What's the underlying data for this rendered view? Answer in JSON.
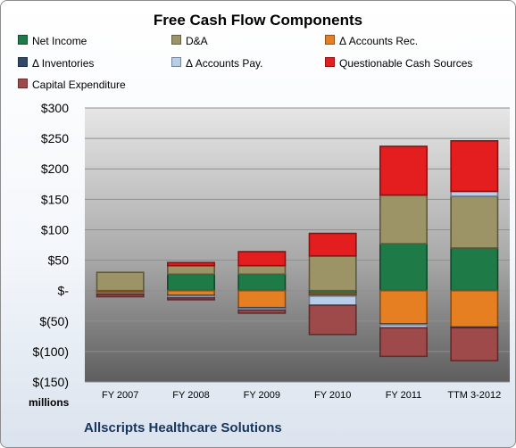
{
  "chart_data": {
    "type": "bar",
    "stacked": true,
    "title": "Free Cash Flow Components",
    "company": "Allscripts Healthcare Solutions",
    "unit_label": "millions",
    "categories": [
      "FY 2007",
      "FY 2008",
      "FY 2009",
      "FY 2010",
      "FY 2011",
      "TTM 3-2012"
    ],
    "ylim": [
      -150,
      300
    ],
    "y_ticks": [
      {
        "value": 300,
        "label": "$300"
      },
      {
        "value": 250,
        "label": "$250"
      },
      {
        "value": 200,
        "label": "$200"
      },
      {
        "value": 150,
        "label": "$150"
      },
      {
        "value": 100,
        "label": "$100"
      },
      {
        "value": 50,
        "label": "$50"
      },
      {
        "value": 0,
        "label": "$-"
      },
      {
        "value": -50,
        "label": "$(50)"
      },
      {
        "value": -100,
        "label": "$(100)"
      },
      {
        "value": -150,
        "label": "$(150)"
      }
    ],
    "grid": true,
    "legend_position": "top",
    "series": [
      {
        "name": "Net Income",
        "color": "#1e7a47",
        "values": [
          -2,
          27,
          27,
          -5,
          77,
          70
        ]
      },
      {
        "name": "D&A",
        "color": "#9c9466",
        "values": [
          30,
          14,
          14,
          57,
          80,
          85
        ]
      },
      {
        "name": "Δ Accounts Rec.",
        "color": "#e67e22",
        "values": [
          -3,
          -8,
          -28,
          -3,
          -55,
          -60
        ]
      },
      {
        "name": "Δ Inventories",
        "color": "#2e4a66",
        "values": [
          0,
          -1,
          -1,
          -1,
          -1,
          -1
        ]
      },
      {
        "name": "Δ Accounts Pay.",
        "color": "#b7cde8",
        "values": [
          -1,
          -3,
          -3,
          -15,
          -5,
          8
        ]
      },
      {
        "name": "Questionable Cash Sources",
        "color": "#e41e1e",
        "values": [
          0,
          5,
          23,
          37,
          80,
          83
        ]
      },
      {
        "name": "Capital Expenditure",
        "color": "#9e4a4a",
        "values": [
          -4,
          -3,
          -5,
          -48,
          -47,
          -54
        ]
      }
    ]
  }
}
